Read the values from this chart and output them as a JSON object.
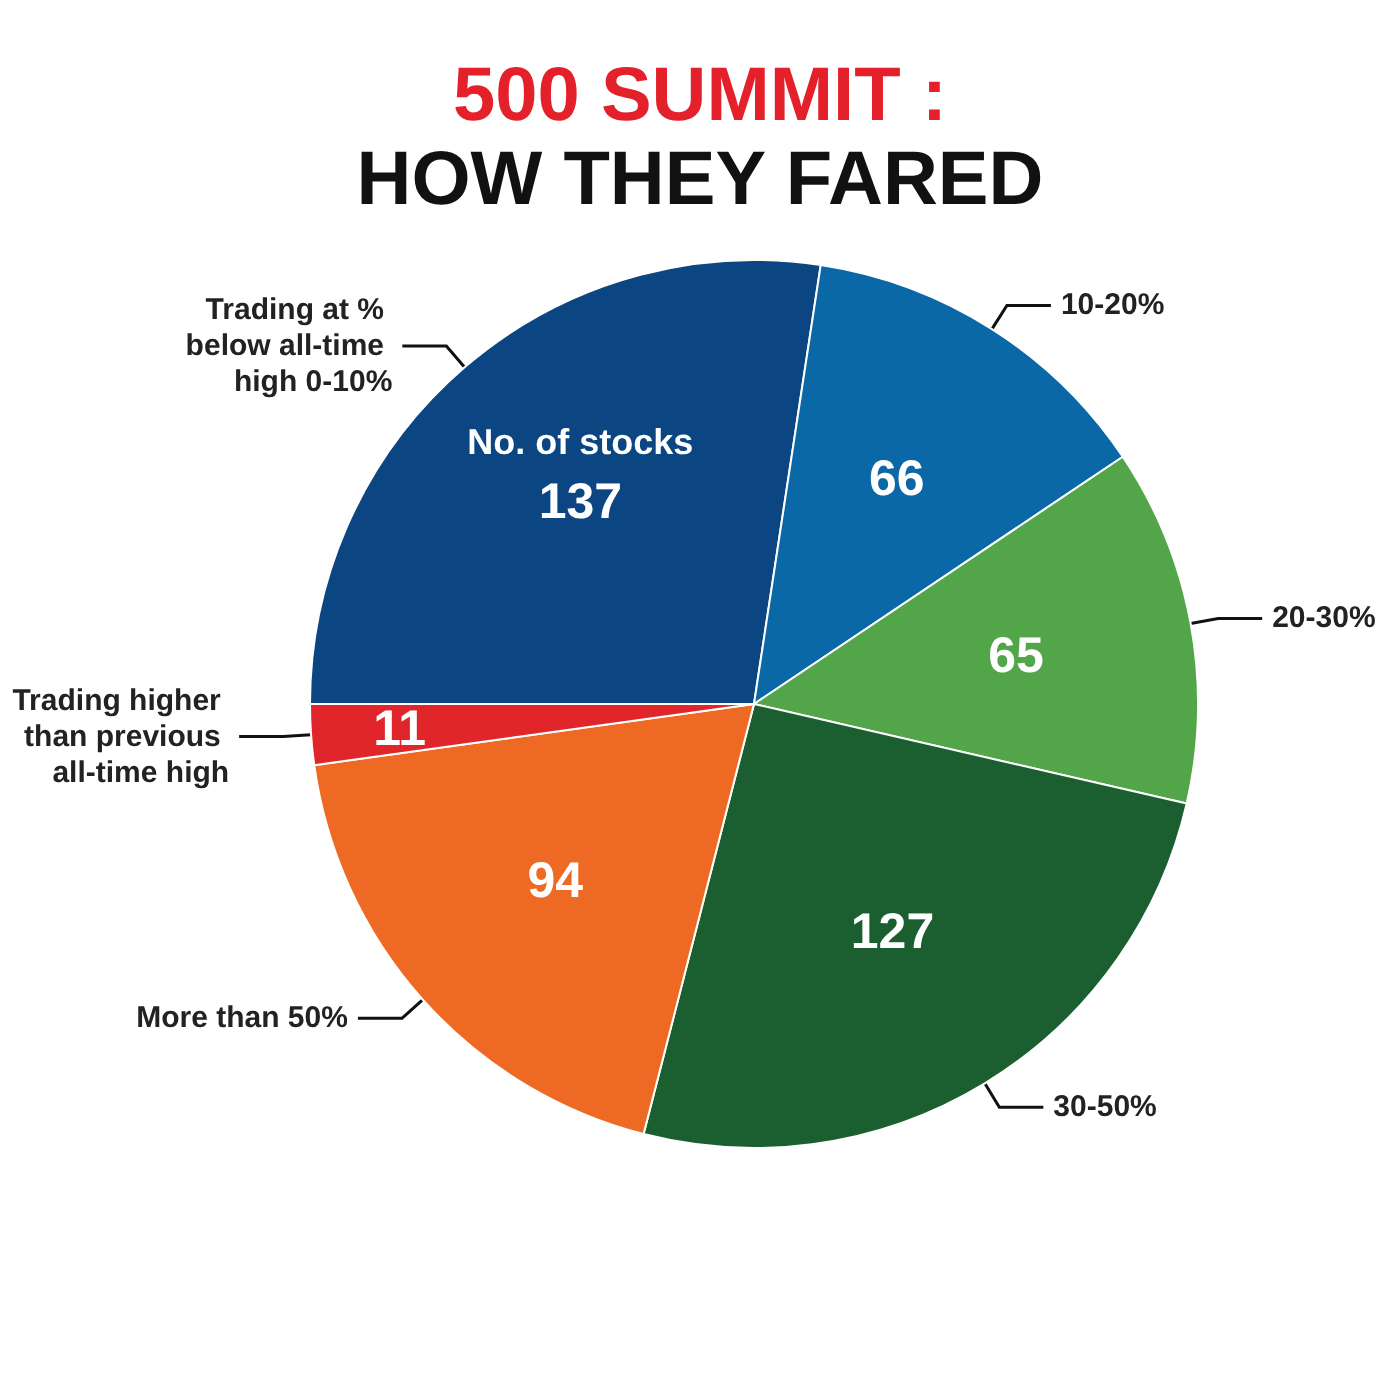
{
  "chart_data": {
    "type": "pie",
    "title": "500 SUMMIT :\nHOW THEY FARED",
    "categories": [
      "Trading at % below all-time high 0-10%",
      "10-20%",
      "20-30%",
      "30-50%",
      "More than 50%",
      "Trading higher than previous all-time high"
    ],
    "values": [
      137,
      66,
      65,
      127,
      94,
      11
    ],
    "colors": [
      "#0b4683",
      "#0a68a6",
      "#52a548",
      "#1b5f30",
      "#ee6a24",
      "#e0262a"
    ],
    "data_labels": true,
    "annotations": [
      "No. of stocks"
    ]
  }
}
